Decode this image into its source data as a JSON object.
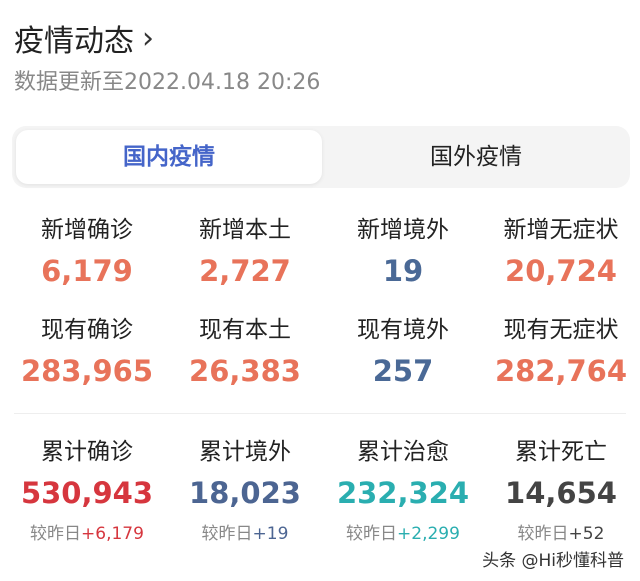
{
  "header": {
    "title": "疫情动态",
    "updated": "数据更新至2022.04.18 20:26"
  },
  "tabs": [
    {
      "label": "国内疫情",
      "active": true
    },
    {
      "label": "国外疫情",
      "active": false
    }
  ],
  "row1": [
    {
      "label": "新增确诊",
      "value": "6,179",
      "color": "#e8735a"
    },
    {
      "label": "新增本土",
      "value": "2,727",
      "color": "#e8735a"
    },
    {
      "label": "新增境外",
      "value": "19",
      "color": "#4a6996"
    },
    {
      "label": "新增无症状",
      "value": "20,724",
      "color": "#e8735a"
    }
  ],
  "row2": [
    {
      "label": "现有确诊",
      "value": "283,965",
      "color": "#e8735a"
    },
    {
      "label": "现有本土",
      "value": "26,383",
      "color": "#e8735a"
    },
    {
      "label": "现有境外",
      "value": "257",
      "color": "#4a6996"
    },
    {
      "label": "现有无症状",
      "value": "282,764",
      "color": "#e8735a"
    }
  ],
  "row3": [
    {
      "label": "累计确诊",
      "value": "530,943",
      "color": "#d6363e",
      "sub_prefix": "较昨日",
      "delta": "+6,179"
    },
    {
      "label": "累计境外",
      "value": "18,023",
      "color": "#4c6592",
      "sub_prefix": "较昨日",
      "delta": "+19"
    },
    {
      "label": "累计治愈",
      "value": "232,324",
      "color": "#2aaeb0",
      "sub_prefix": "较昨日",
      "delta": "+2,299"
    },
    {
      "label": "累计死亡",
      "value": "14,654",
      "color": "#444444",
      "sub_prefix": "较昨日",
      "delta": "+52"
    }
  ],
  "watermark": "头条 @Hi秒懂科普"
}
